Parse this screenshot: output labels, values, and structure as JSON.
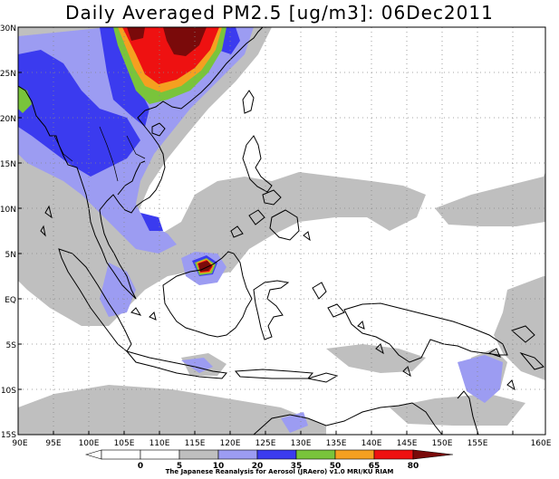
{
  "title": "Daily Averaged PM2.5 [ug/m3]: 06Dec2011",
  "lon_labels": [
    "90E",
    "95E",
    "100E",
    "105E",
    "110E",
    "115E",
    "120E",
    "125E",
    "130E",
    "135E",
    "140E",
    "145E",
    "150E",
    "155E",
    "160E"
  ],
  "lat_labels": [
    "30N",
    "25N",
    "20N",
    "15N",
    "10N",
    "5N",
    "EQ",
    "5S",
    "10S",
    "15S"
  ],
  "legend": {
    "values": [
      "0",
      "5",
      "10",
      "20",
      "35",
      "50",
      "65",
      "80"
    ],
    "colors": {
      "c0_5": "#ffffff",
      "c5_10": "#ffffff",
      "c10_20": "#bfbfbf",
      "c20_35": "#9c9cf2",
      "c35_50": "#3b3bef",
      "c50_65": "#79c43b",
      "c65_80": "#f5a020",
      "c80p_red": "#ee1111",
      "c80p_dark": "#7a0a0a"
    }
  },
  "credit": "The Japanese Reanalysis for Aerosol (JRAero) v1.0 MRI/KU RIAM"
}
